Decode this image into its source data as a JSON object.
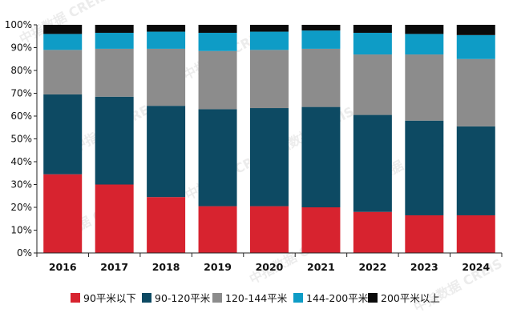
{
  "watermark": "中指数据 CREIS",
  "chart_data": {
    "type": "bar",
    "stacked": true,
    "percent": true,
    "categories": [
      "2016",
      "2017",
      "2018",
      "2019",
      "2020",
      "2021",
      "2022",
      "2023",
      "2024"
    ],
    "series": [
      {
        "name": "90平米以下",
        "color": "#d7232f",
        "values": [
          34.5,
          30,
          24.5,
          20.5,
          20.5,
          20,
          18,
          16.5,
          16.5
        ]
      },
      {
        "name": "90-120平米",
        "color": "#0d4a63",
        "values": [
          35,
          38.5,
          40,
          42.5,
          43,
          44,
          42.5,
          41.5,
          39
        ]
      },
      {
        "name": "120-144平米",
        "color": "#8c8c8c",
        "values": [
          19.5,
          21,
          25,
          25.5,
          25.5,
          25.5,
          26.5,
          29,
          29.5
        ]
      },
      {
        "name": "144-200平米",
        "color": "#0e9cc6",
        "values": [
          7,
          7,
          7.5,
          8,
          8,
          8,
          9.5,
          9,
          10.5
        ]
      },
      {
        "name": "200平米以上",
        "color": "#0a0a0a",
        "values": [
          4,
          3.5,
          3,
          3.5,
          3,
          2.5,
          3.5,
          4,
          4.5
        ]
      }
    ],
    "yticks": [
      "0%",
      "10%",
      "20%",
      "30%",
      "40%",
      "50%",
      "60%",
      "70%",
      "80%",
      "90%",
      "100%"
    ],
    "ylim": [
      0,
      100
    ],
    "legend_position": "bottom",
    "grid": false
  }
}
